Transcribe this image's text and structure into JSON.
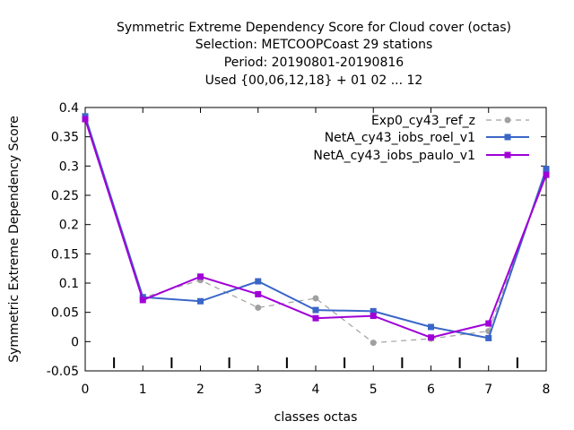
{
  "chart_data": {
    "type": "line",
    "title_lines": [
      "Symmetric Extreme Dependency Score  for Cloud cover (octas)",
      "Selection: METCOOPCoast     29 stations",
      "Period: 20190801-20190816",
      "Used {00,06,12,18} + 01 02 ... 12"
    ],
    "xlabel": "classes octas",
    "ylabel": "Symmetric Extreme Dependency Score",
    "xlim": [
      0,
      8
    ],
    "ylim": [
      -0.05,
      0.4
    ],
    "x_ticks": [
      0,
      1,
      2,
      3,
      4,
      5,
      6,
      7,
      8
    ],
    "y_ticks": [
      -0.05,
      0,
      0.05,
      0.1,
      0.15,
      0.2,
      0.25,
      0.3,
      0.35,
      0.4
    ],
    "y_tick_labels": [
      "-0.05",
      "0",
      "0.05",
      "0.1",
      "0.15",
      "0.2",
      "0.25",
      "0.3",
      "0.35",
      "0.4"
    ],
    "minor_x_marks": [
      0.5,
      1.5,
      2.5,
      3.5,
      4.5,
      5.5,
      6.5,
      7.5
    ],
    "legend_position": "top-right",
    "grid": false,
    "x": [
      0,
      1,
      2,
      3,
      4,
      5,
      6,
      7,
      8
    ],
    "series": [
      {
        "name": "Exp0_cy43_ref_z",
        "values": [
          0.385,
          0.075,
          0.105,
          0.058,
          0.074,
          -0.002,
          0.005,
          0.018,
          0.29
        ],
        "color": "#a0a0a0",
        "dash": "dashed",
        "marker": "circle"
      },
      {
        "name": "NetA_cy43_iobs_roel_v1",
        "values": [
          0.385,
          0.076,
          0.069,
          0.103,
          0.054,
          0.052,
          0.025,
          0.006,
          0.295
        ],
        "color": "#3a66c8",
        "dash": "solid",
        "marker": "square"
      },
      {
        "name": "NetA_cy43_iobs_paulo_v1",
        "values": [
          0.38,
          0.071,
          0.111,
          0.081,
          0.04,
          0.044,
          0.007,
          0.031,
          0.285
        ],
        "color": "#a000d8",
        "dash": "solid",
        "marker": "square"
      }
    ]
  }
}
